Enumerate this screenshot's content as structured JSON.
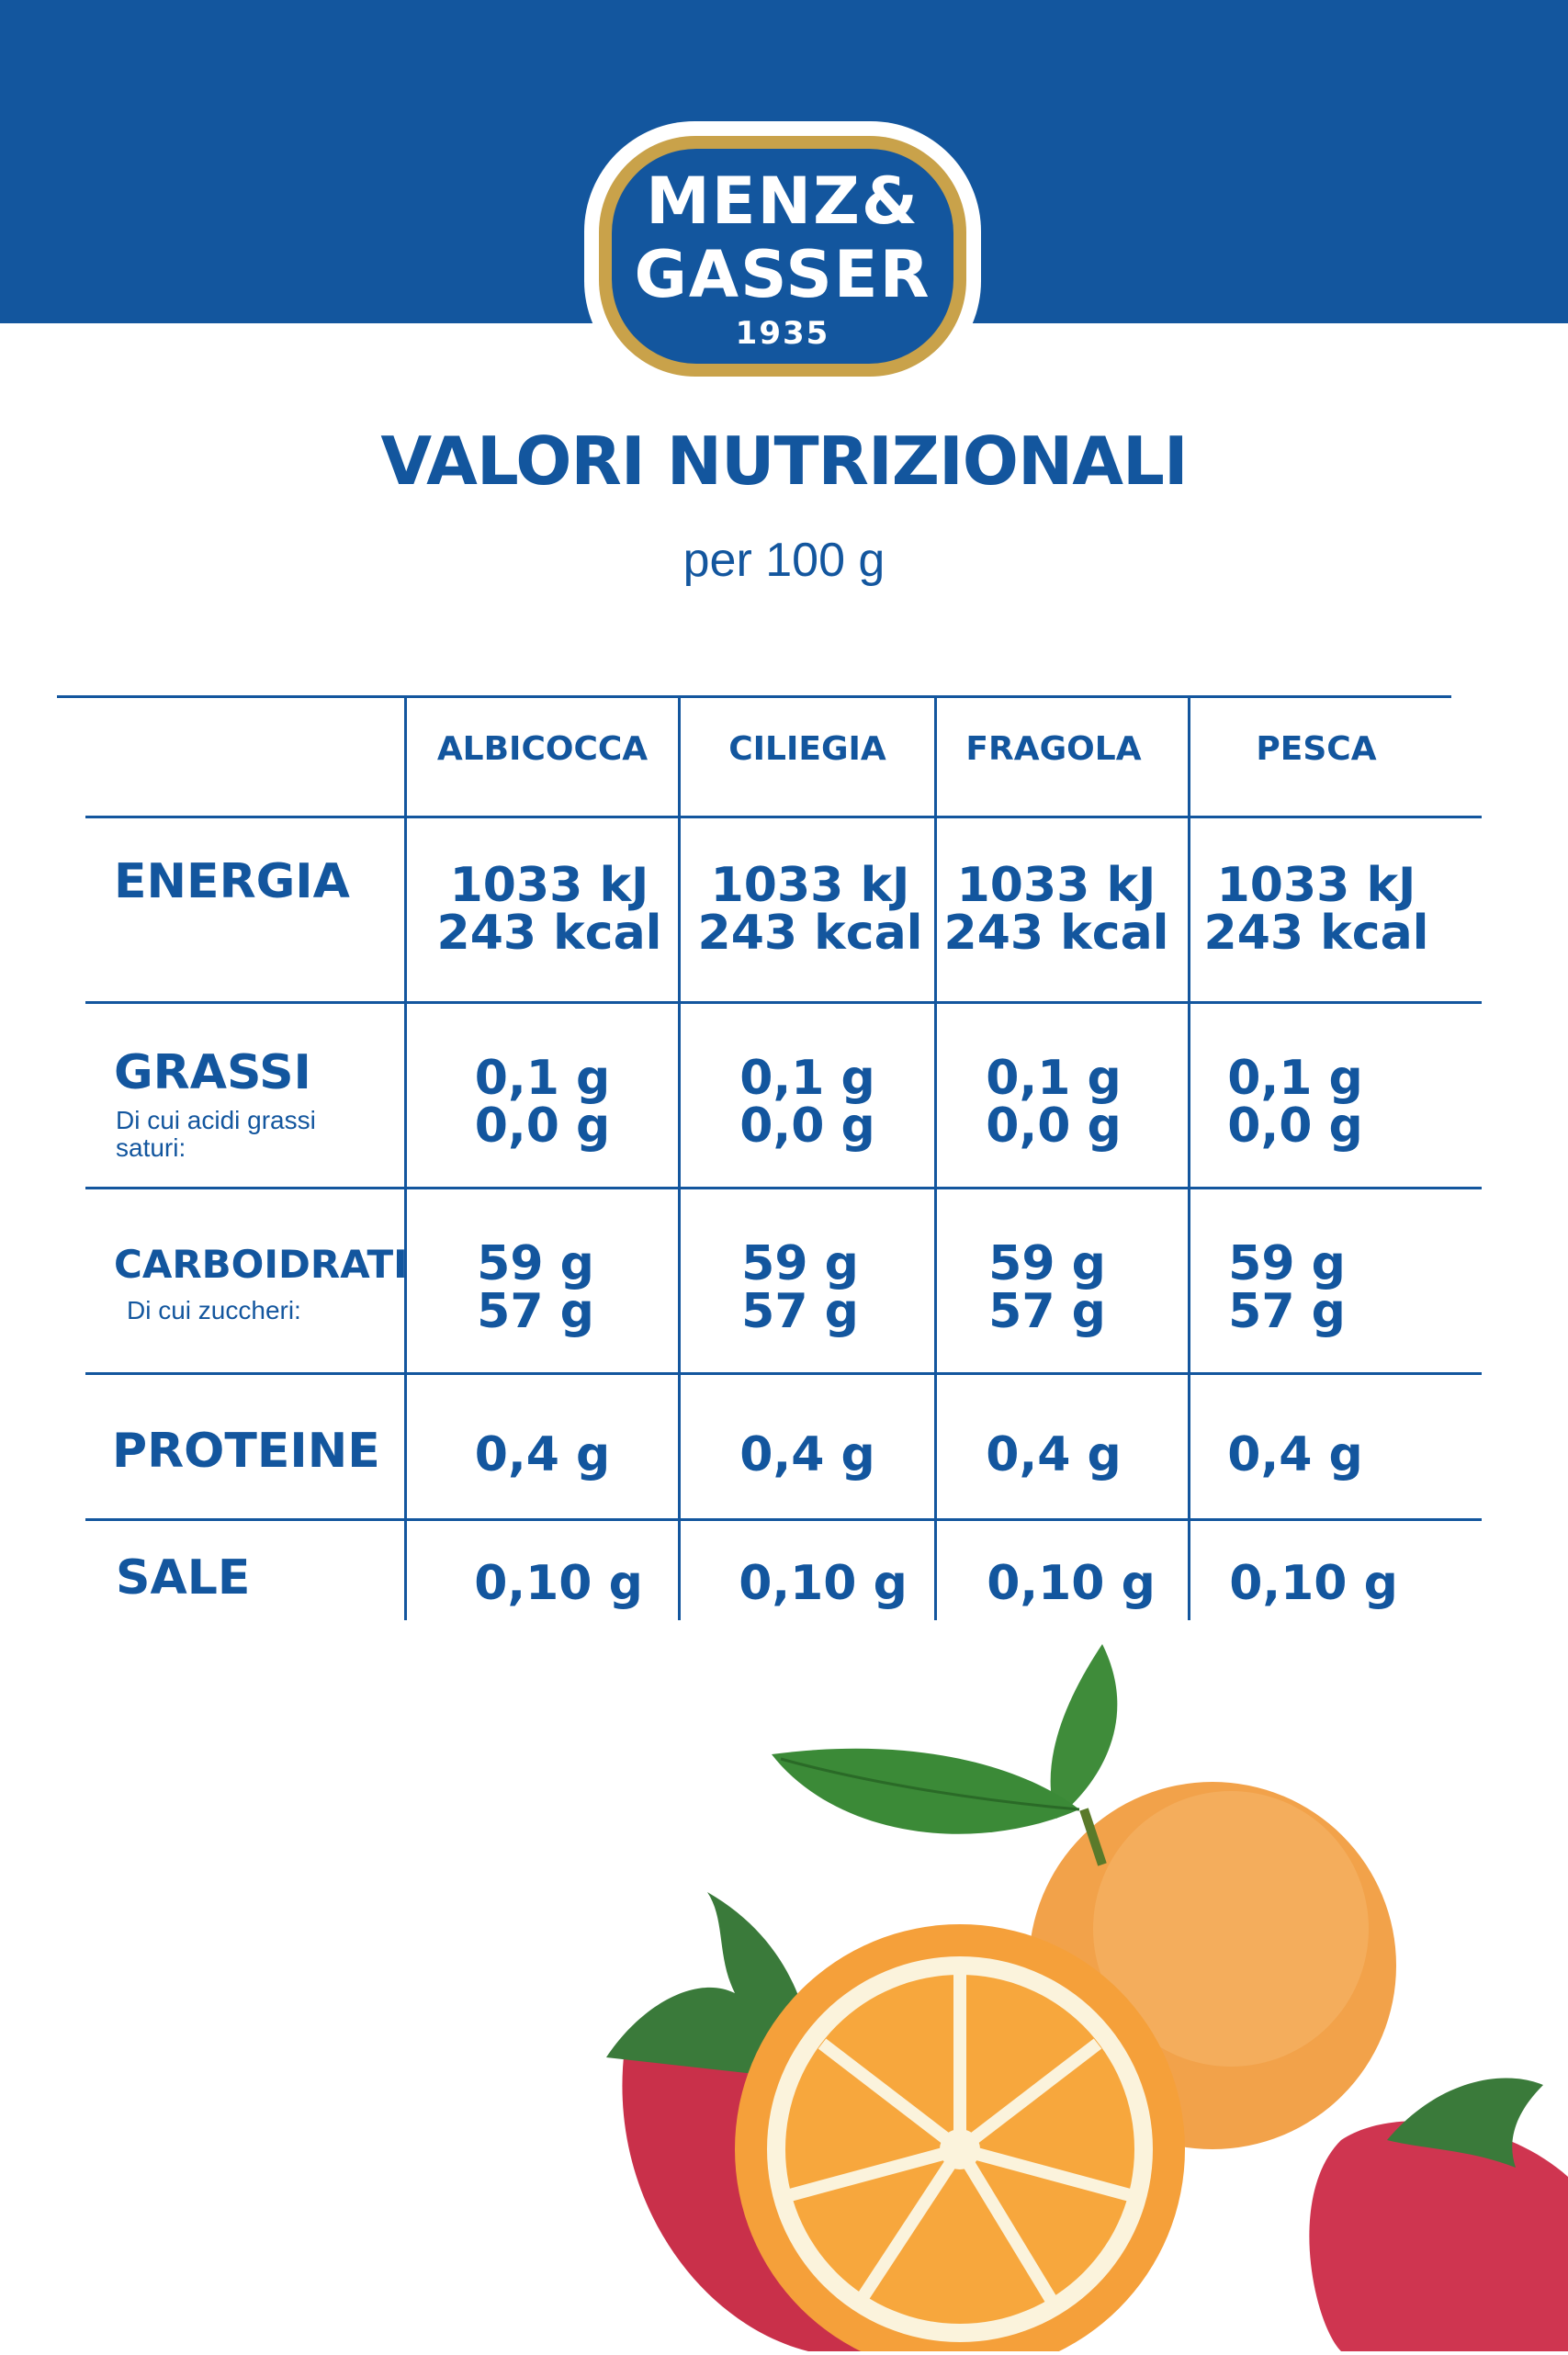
{
  "brand": {
    "line1": "MENZ&",
    "line2": "GASSER",
    "year": "1935"
  },
  "title": "VALORI NUTRIZIONALI",
  "subtitle": "per 100 g",
  "columns": [
    "ALBICOCCA",
    "CILIEGIA",
    "FRAGOLA",
    "PESCA"
  ],
  "rows": {
    "energia": {
      "label": "ENERGIA",
      "values": [
        [
          "1033 kJ",
          "243 kcal"
        ],
        [
          "1033 kJ",
          "243 kcal"
        ],
        [
          "1033 kJ",
          "243 kcal"
        ],
        [
          "1033 kJ",
          "243 kcal"
        ]
      ]
    },
    "grassi": {
      "label": "GRASSI",
      "sublabel": "Di cui acidi grassi saturi:",
      "values": [
        [
          "0,1 g",
          "0,0 g"
        ],
        [
          "0,1 g",
          "0,0 g"
        ],
        [
          "0,1 g",
          "0,0 g"
        ],
        [
          "0,1 g",
          "0,0 g"
        ]
      ]
    },
    "carboidrati": {
      "label": "CARBOIDRATI",
      "sublabel": "Di cui zuccheri:",
      "values": [
        [
          "59 g",
          "57 g"
        ],
        [
          "59 g",
          "57 g"
        ],
        [
          "59 g",
          "57 g"
        ],
        [
          "59 g",
          "57 g"
        ]
      ]
    },
    "proteine": {
      "label": "PROTEINE",
      "values": [
        "0,4 g",
        "0,4 g",
        "0,4 g",
        "0,4 g"
      ]
    },
    "sale": {
      "label": "SALE",
      "values": [
        "0,10 g",
        "0,10 g",
        "0,10 g",
        "0,10 g"
      ]
    }
  },
  "colors": {
    "brand_blue": "#13569e",
    "gold": "#c9a24a",
    "background": "#ffffff"
  }
}
